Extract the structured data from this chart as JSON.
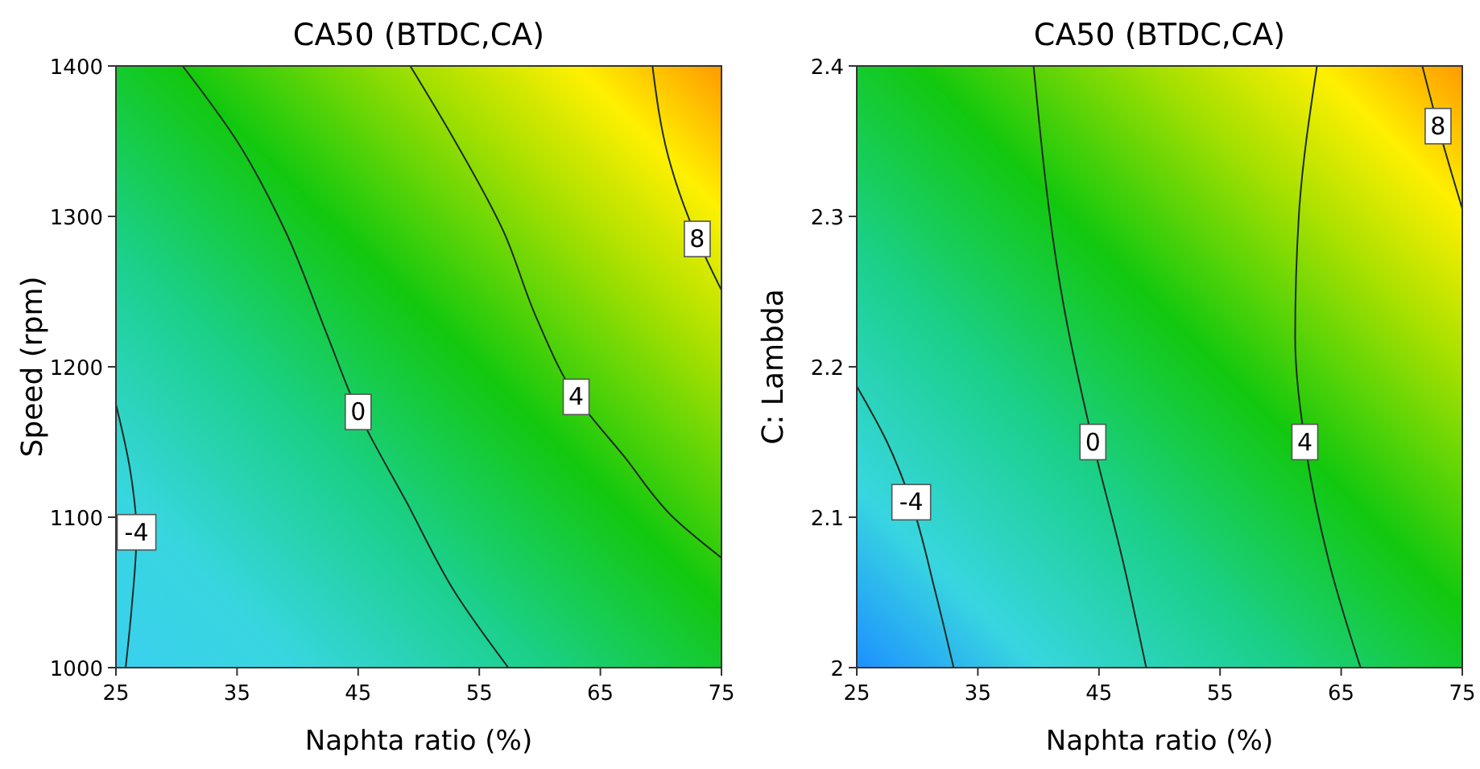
{
  "chart_data": [
    {
      "type": "line",
      "title": "CA50 (BTDC,CA)",
      "xlabel": "Naphta ratio (%)",
      "ylabel": "Speed (rpm)",
      "xlim": [
        25,
        75
      ],
      "ylim": [
        1000,
        1400
      ],
      "xticks": [
        25,
        35,
        45,
        55,
        65,
        75
      ],
      "yticks": [
        1000,
        1100,
        1200,
        1300,
        1400
      ],
      "series": [
        {
          "name": "-4",
          "color": "#1e2b24",
          "x": [
            25,
            26.2,
            26.7,
            26.3,
            25.8
          ],
          "values": [
            1175,
            1130,
            1090,
            1040,
            1000
          ]
        },
        {
          "name": "0",
          "color": "#1e2b24",
          "x": [
            30.5,
            35,
            39,
            42.4,
            45,
            49,
            53,
            57.4
          ],
          "values": [
            1400,
            1350,
            1290,
            1222,
            1170,
            1110,
            1050,
            1000
          ]
        },
        {
          "name": "4",
          "color": "#1e2b24",
          "x": [
            49.3,
            53,
            57,
            59.7,
            63,
            67,
            71,
            75
          ],
          "values": [
            1400,
            1350,
            1290,
            1233,
            1180,
            1140,
            1100,
            1073
          ]
        },
        {
          "name": "8",
          "color": "#1e2b24",
          "x": [
            69.3,
            70.6,
            73,
            75
          ],
          "values": [
            1400,
            1340,
            1285,
            1251
          ]
        }
      ]
    },
    {
      "type": "line",
      "title": "CA50 (BTDC,CA)",
      "xlabel": "Naphta ratio (%)",
      "ylabel": "C: Lambda",
      "xlim": [
        25,
        75
      ],
      "ylim": [
        2,
        2.4
      ],
      "xticks": [
        25,
        35,
        45,
        55,
        65,
        75
      ],
      "yticks": [
        2,
        2.1,
        2.2,
        2.3,
        2.4
      ],
      "series": [
        {
          "name": "-4",
          "color": "#1e2b24",
          "x": [
            25,
            27.5,
            29.5,
            31.5,
            33
          ],
          "values": [
            2.187,
            2.15,
            2.11,
            2.05,
            2.0
          ]
        },
        {
          "name": "0",
          "color": "#1e2b24",
          "x": [
            39.6,
            42.1,
            44.5,
            47,
            48.9
          ],
          "values": [
            2.4,
            2.24,
            2.15,
            2.07,
            2.0
          ]
        },
        {
          "name": "4",
          "color": "#1e2b24",
          "x": [
            63,
            61.5,
            61.2,
            62,
            64,
            66.6
          ],
          "values": [
            2.4,
            2.3,
            2.22,
            2.15,
            2.07,
            2.0
          ]
        },
        {
          "name": "8",
          "color": "#1e2b24",
          "x": [
            71.7,
            73,
            75
          ],
          "values": [
            2.4,
            2.36,
            2.305
          ]
        }
      ]
    }
  ]
}
